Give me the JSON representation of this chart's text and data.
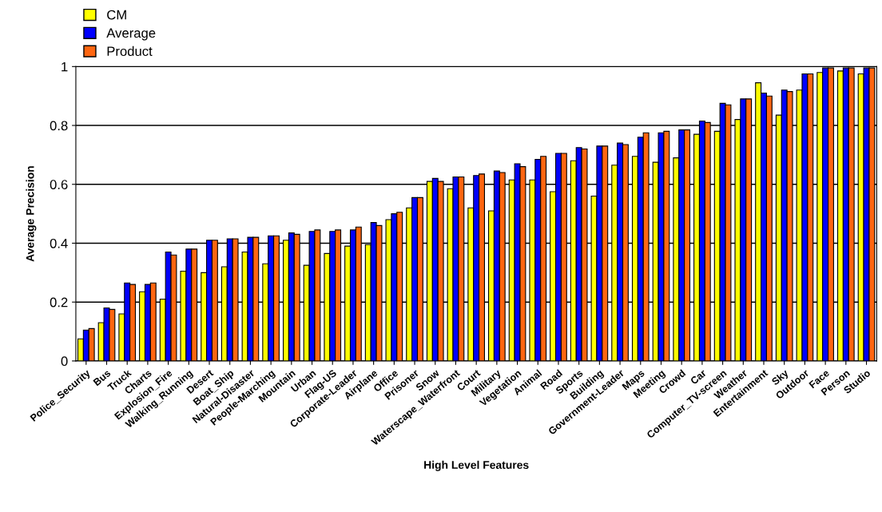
{
  "chart_data": {
    "type": "bar",
    "xlabel": "High Level Features",
    "ylabel": "Average Precision",
    "categories": [
      "Police_Security",
      "Bus",
      "Truck",
      "Charts",
      "Explosion_Fire",
      "Walking_Running",
      "Desert",
      "Boat_Ship",
      "Natural-Disaster",
      "People-Marching",
      "Mountain",
      "Urban",
      "Flag-US",
      "Corporate-Leader",
      "Airplane",
      "Office",
      "Prisoner",
      "Snow",
      "Waterscape_Waterfront",
      "Court",
      "Military",
      "Vegetation",
      "Animal",
      "Road",
      "Sports",
      "Building",
      "Government-Leader",
      "Maps",
      "Meeting",
      "Crowd",
      "Car",
      "Computer_TV-screen",
      "Weather",
      "Entertainment",
      "Sky",
      "Outdoor",
      "Face",
      "Person",
      "Studio"
    ],
    "series": [
      {
        "name": "CM",
        "color": "#ffff00",
        "values": [
          0.075,
          0.13,
          0.16,
          0.235,
          0.21,
          0.305,
          0.3,
          0.32,
          0.37,
          0.33,
          0.41,
          0.325,
          0.365,
          0.39,
          0.395,
          0.48,
          0.52,
          0.61,
          0.585,
          0.52,
          0.51,
          0.615,
          0.615,
          0.575,
          0.68,
          0.56,
          0.665,
          0.695,
          0.675,
          0.69,
          0.77,
          0.78,
          0.82,
          0.945,
          0.835,
          0.92,
          0.98,
          0.985,
          0.975
        ]
      },
      {
        "name": "Average",
        "color": "#0000ff",
        "values": [
          0.105,
          0.18,
          0.265,
          0.26,
          0.37,
          0.38,
          0.41,
          0.415,
          0.42,
          0.425,
          0.435,
          0.44,
          0.44,
          0.445,
          0.47,
          0.5,
          0.555,
          0.62,
          0.625,
          0.63,
          0.645,
          0.67,
          0.685,
          0.705,
          0.725,
          0.73,
          0.74,
          0.76,
          0.775,
          0.785,
          0.815,
          0.875,
          0.89,
          0.91,
          0.92,
          0.975,
          0.995,
          0.995,
          0.995
        ]
      },
      {
        "name": "Product",
        "color": "#ff6611",
        "values": [
          0.11,
          0.175,
          0.26,
          0.265,
          0.36,
          0.38,
          0.41,
          0.415,
          0.42,
          0.425,
          0.43,
          0.445,
          0.445,
          0.455,
          0.46,
          0.505,
          0.555,
          0.61,
          0.625,
          0.635,
          0.64,
          0.66,
          0.695,
          0.705,
          0.72,
          0.73,
          0.735,
          0.775,
          0.78,
          0.785,
          0.81,
          0.87,
          0.89,
          0.9,
          0.915,
          0.975,
          0.995,
          0.995,
          0.995
        ]
      }
    ],
    "ylim": [
      0,
      1
    ],
    "yticks": [
      0,
      0.2,
      0.4,
      0.6,
      0.8,
      1
    ],
    "grid": "y",
    "legend": "top left"
  }
}
